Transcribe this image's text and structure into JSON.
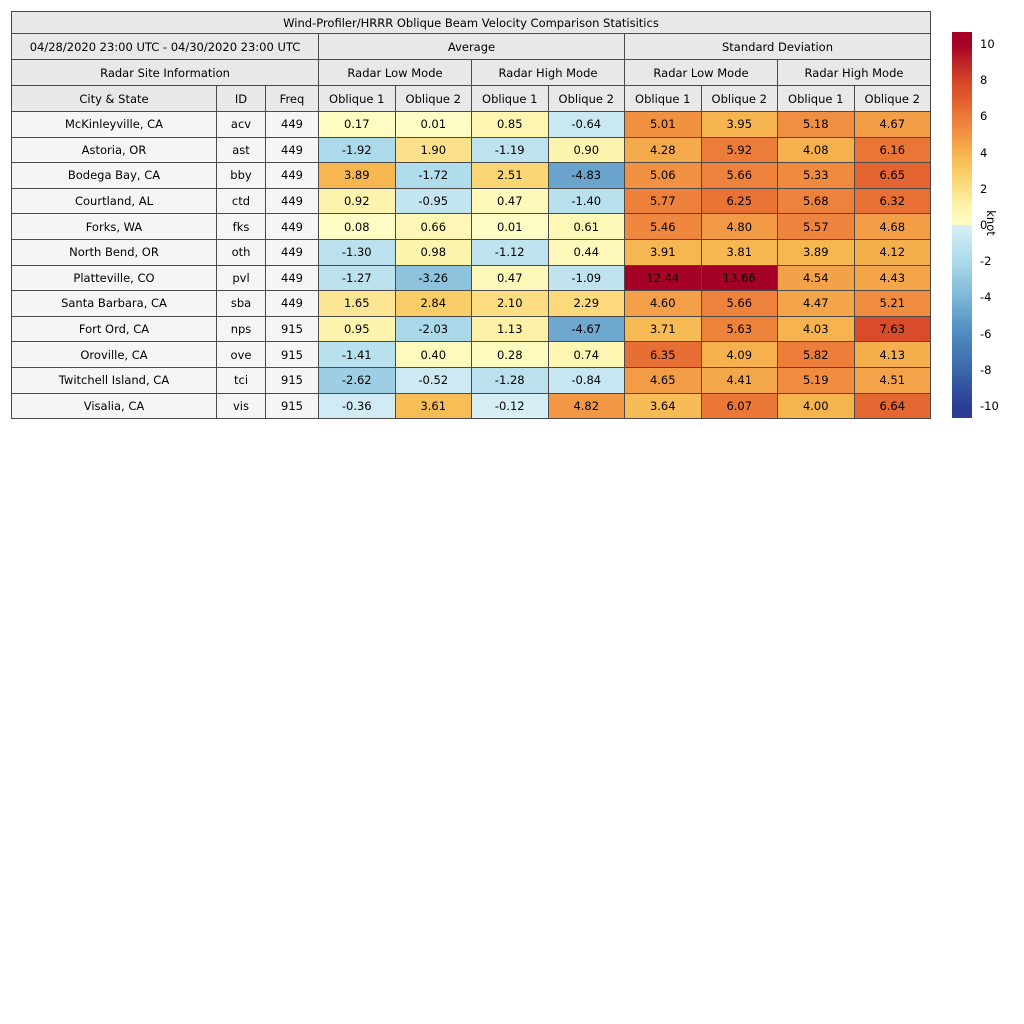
{
  "chart_data": {
    "type": "heatmap",
    "title": "Wind-Profiler/HRRR Oblique Beam Velocity Comparison Statisitics",
    "period": "04/28/2020 23:00 UTC - 04/30/2020 23:00 UTC",
    "group_headers": {
      "site_info": "Radar Site Information",
      "average": "Average",
      "std_dev": "Standard Deviation",
      "low_mode": "Radar Low Mode",
      "high_mode": "Radar High Mode"
    },
    "columns": {
      "city": "City & State",
      "id": "ID",
      "freq": "Freq",
      "oblique1": "Oblique 1",
      "oblique2": "Oblique 2"
    },
    "value_columns": [
      "avg_low_ob1",
      "avg_low_ob2",
      "avg_high_ob1",
      "avg_high_ob2",
      "std_low_ob1",
      "std_low_ob2",
      "std_high_ob1",
      "std_high_ob2"
    ],
    "rows": [
      {
        "city": "McKinleyville, CA",
        "id": "acv",
        "freq": "449",
        "values": [
          0.17,
          0.01,
          0.85,
          -0.64,
          5.01,
          3.95,
          5.18,
          4.67
        ]
      },
      {
        "city": "Astoria, OR",
        "id": "ast",
        "freq": "449",
        "values": [
          -1.92,
          1.9,
          -1.19,
          0.9,
          4.28,
          5.92,
          4.08,
          6.16
        ]
      },
      {
        "city": "Bodega Bay, CA",
        "id": "bby",
        "freq": "449",
        "values": [
          3.89,
          -1.72,
          2.51,
          -4.83,
          5.06,
          5.66,
          5.33,
          6.65
        ]
      },
      {
        "city": "Courtland, AL",
        "id": "ctd",
        "freq": "449",
        "values": [
          0.92,
          -0.95,
          0.47,
          -1.4,
          5.77,
          6.25,
          5.68,
          6.32
        ]
      },
      {
        "city": "Forks, WA",
        "id": "fks",
        "freq": "449",
        "values": [
          0.08,
          0.66,
          0.01,
          0.61,
          5.46,
          4.8,
          5.57,
          4.68
        ]
      },
      {
        "city": "North Bend, OR",
        "id": "oth",
        "freq": "449",
        "values": [
          -1.3,
          0.98,
          -1.12,
          0.44,
          3.91,
          3.81,
          3.89,
          4.12
        ]
      },
      {
        "city": "Platteville, CO",
        "id": "pvl",
        "freq": "449",
        "values": [
          -1.27,
          -3.26,
          0.47,
          -1.09,
          12.44,
          13.66,
          4.54,
          4.43
        ]
      },
      {
        "city": "Santa Barbara, CA",
        "id": "sba",
        "freq": "449",
        "values": [
          1.65,
          2.84,
          2.1,
          2.29,
          4.6,
          5.66,
          4.47,
          5.21
        ]
      },
      {
        "city": "Fort Ord, CA",
        "id": "nps",
        "freq": "915",
        "values": [
          0.95,
          -2.03,
          1.13,
          -4.67,
          3.71,
          5.63,
          4.03,
          7.63
        ]
      },
      {
        "city": "Oroville, CA",
        "id": "ove",
        "freq": "915",
        "values": [
          -1.41,
          0.4,
          0.28,
          0.74,
          6.35,
          4.09,
          5.82,
          4.13
        ]
      },
      {
        "city": "Twitchell Island, CA",
        "id": "tci",
        "freq": "915",
        "values": [
          -2.62,
          -0.52,
          -1.28,
          -0.84,
          4.65,
          4.41,
          5.19,
          4.51
        ]
      },
      {
        "city": "Visalia, CA",
        "id": "vis",
        "freq": "915",
        "values": [
          -0.36,
          3.61,
          -0.12,
          4.82,
          3.64,
          6.07,
          4.0,
          6.64
        ]
      }
    ],
    "colorbar": {
      "label": "knot",
      "ticks": [
        10,
        8,
        6,
        4,
        2,
        0,
        -2,
        -4,
        -6,
        -8,
        -10
      ],
      "vmin": -10,
      "vmax": 10,
      "bar_value_top": 10.66,
      "bar_value_bottom": -10.66,
      "colormap_anchors": [
        [
          -10,
          "#2c3e93"
        ],
        [
          -8,
          "#3a68ab"
        ],
        [
          -6,
          "#4f8bc0"
        ],
        [
          -4,
          "#7db6d7"
        ],
        [
          -2,
          "#abd9e9"
        ],
        [
          -0.01,
          "#d9eff6"
        ],
        [
          0.01,
          "#fffdc6"
        ],
        [
          1,
          "#fdf4ac"
        ],
        [
          2,
          "#fcdf86"
        ],
        [
          3,
          "#f9cb62"
        ],
        [
          4,
          "#f6b44f"
        ],
        [
          5,
          "#f19243"
        ],
        [
          6,
          "#ec7a38"
        ],
        [
          7,
          "#e05a2d"
        ],
        [
          8,
          "#d44428"
        ],
        [
          10,
          "#a50026"
        ]
      ]
    },
    "colors": {
      "header_bg": "#e8e8e8",
      "site_cell_bg": "#f5f5f5",
      "border": "#4a4a4a",
      "text": "#000000"
    }
  }
}
